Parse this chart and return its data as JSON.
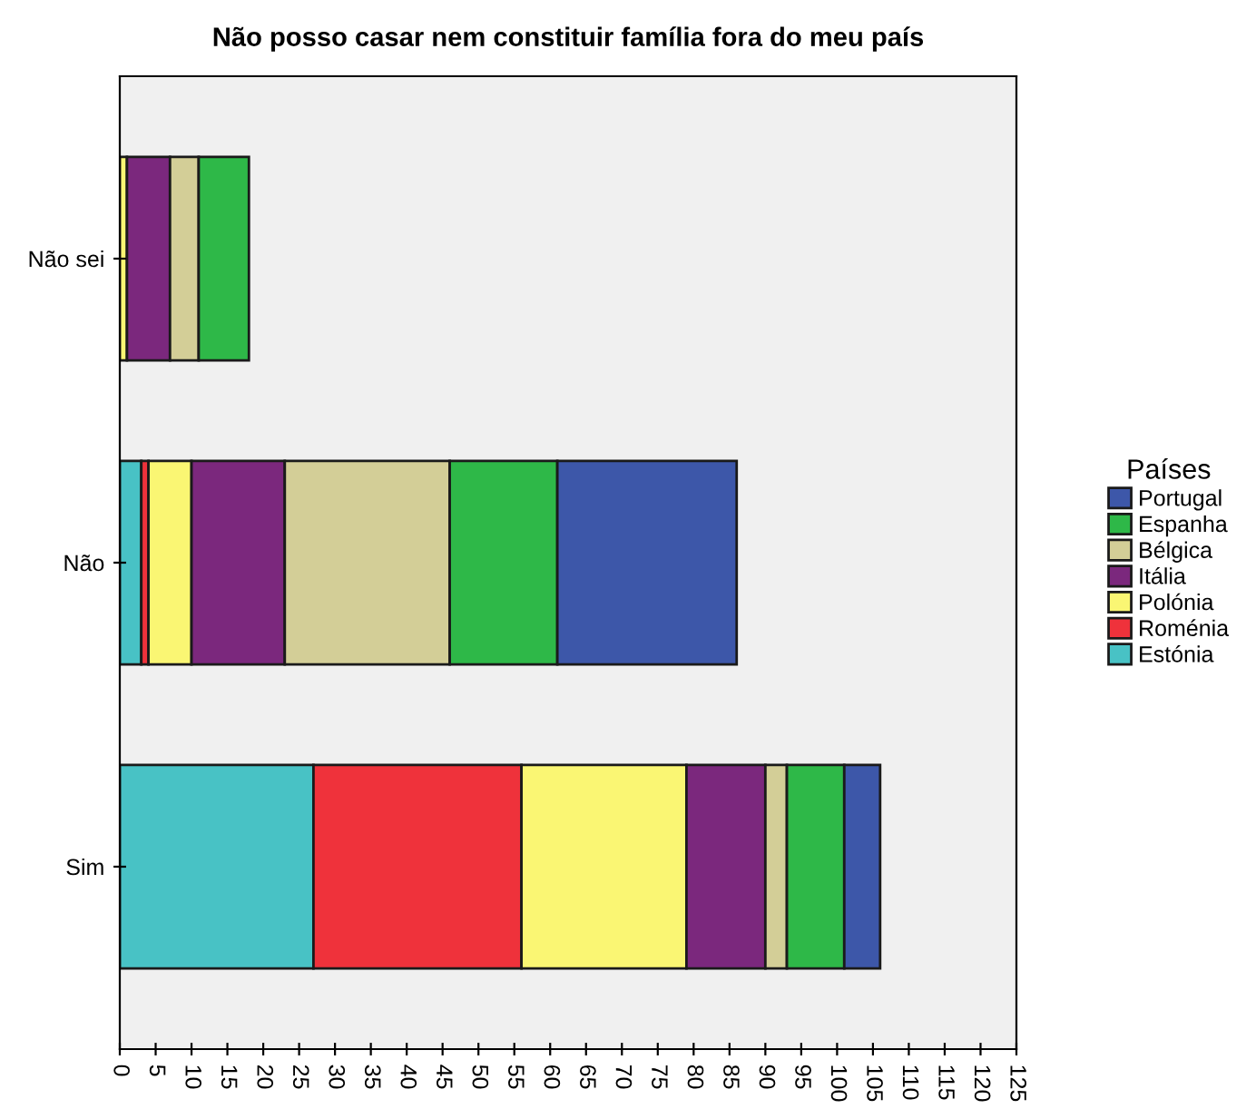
{
  "chart_data": {
    "type": "bar",
    "orientation": "horizontal",
    "stacked": true,
    "title": "Não posso casar nem constituir família fora do meu país",
    "legend_title": "Países",
    "legend": "right",
    "categories": [
      "Não sei",
      "Não",
      "Sim"
    ],
    "series": [
      {
        "name": "Estónia",
        "color": "#48c2c5",
        "values": [
          0,
          3,
          27
        ]
      },
      {
        "name": "Roménia",
        "color": "#ef323b",
        "values": [
          0,
          1,
          29
        ]
      },
      {
        "name": "Polónia",
        "color": "#faf673",
        "values": [
          1,
          6,
          23
        ]
      },
      {
        "name": "Itália",
        "color": "#7b287d",
        "values": [
          6,
          13,
          11
        ]
      },
      {
        "name": "Bélgica",
        "color": "#d3ce97",
        "values": [
          4,
          23,
          3
        ]
      },
      {
        "name": "Espanha",
        "color": "#2eb848",
        "values": [
          7,
          15,
          8
        ]
      },
      {
        "name": "Portugal",
        "color": "#3d57a9",
        "values": [
          0,
          25,
          5
        ]
      }
    ],
    "xlim": [
      0,
      125
    ],
    "xticks": [
      0,
      5,
      10,
      15,
      20,
      25,
      30,
      35,
      40,
      45,
      50,
      55,
      60,
      65,
      70,
      75,
      80,
      85,
      90,
      95,
      100,
      105,
      110,
      115,
      120,
      125
    ],
    "grid": false
  }
}
